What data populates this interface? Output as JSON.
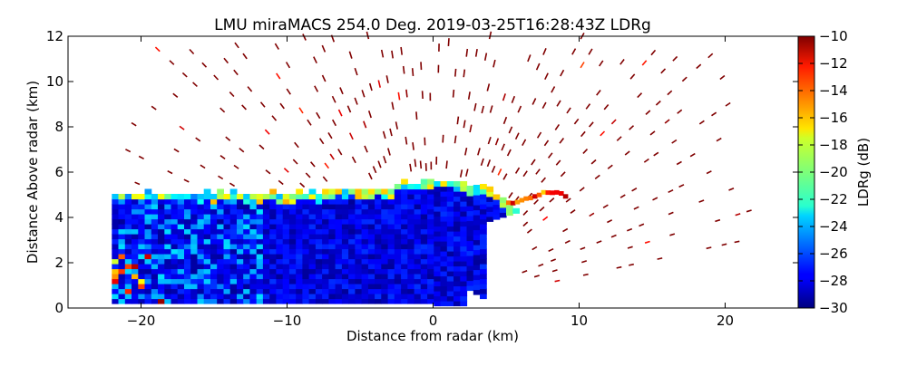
{
  "chart_data": {
    "type": "heatmap",
    "title": "LMU miraMACS 254.0 Deg. 2019-03-25T16:28:43Z  LDRg",
    "xlabel": "Distance from radar (km)",
    "ylabel": "Distance Above radar  (km)",
    "xlim": [
      -25,
      25
    ],
    "ylim": [
      0,
      12
    ],
    "xticks": [
      -20,
      -10,
      0,
      10,
      20
    ],
    "yticks": [
      0,
      2,
      4,
      6,
      8,
      10,
      12
    ],
    "xtick_labels": [
      "−20",
      "−10",
      "0",
      "10",
      "20"
    ],
    "ytick_labels": [
      "0",
      "2",
      "4",
      "6",
      "8",
      "10",
      "12"
    ],
    "grid": false,
    "colorbar": {
      "label": "LDRg (dB)",
      "range": [
        -30,
        -10
      ],
      "ticks": [
        -30,
        -28,
        -26,
        -24,
        -22,
        -20,
        -18,
        -16,
        -14,
        -12,
        -10
      ],
      "tick_labels": [
        "−30",
        "−28",
        "−26",
        "−24",
        "−22",
        "−20",
        "−18",
        "−16",
        "−14",
        "−12",
        "−10"
      ],
      "colormap": "jet"
    },
    "features": {
      "main_echo": {
        "x_range": [
          -22,
          6
        ],
        "top_km": 5.1,
        "typical_ldr": -28
      },
      "noise_speckle_ldr": -10,
      "high_ldr_low_level_patches_ldr": -12,
      "melting_edge_ldr": -24
    }
  }
}
